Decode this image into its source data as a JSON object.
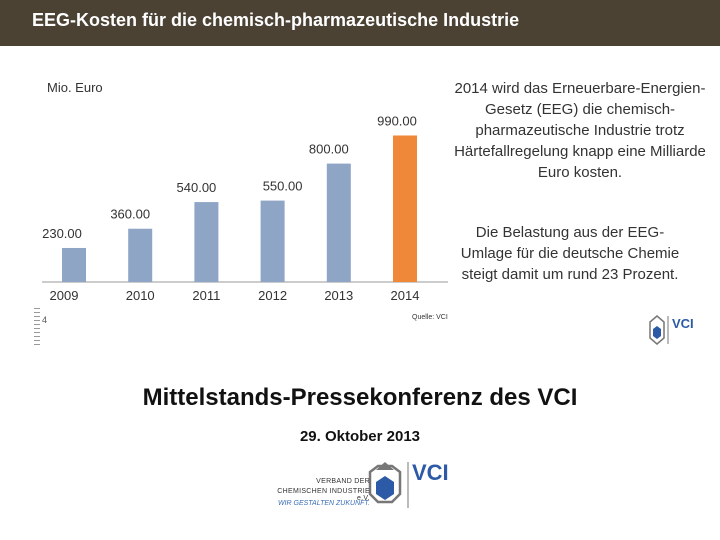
{
  "header": {
    "title": "EEG-Kosten für die chemisch-pharmazeutische Industrie"
  },
  "chart_data": {
    "type": "bar",
    "unit_label": "Mio. Euro",
    "categories": [
      "2009",
      "2010",
      "2011",
      "2012",
      "2013",
      "2014"
    ],
    "values": [
      230,
      360,
      540,
      550,
      800,
      990
    ],
    "data_labels": [
      "230.00",
      "360.00",
      "540.00",
      "550.00",
      "800.00",
      "990.00"
    ],
    "highlight_index": 5,
    "colors": {
      "default": "#8ea5c6",
      "highlight": "#f0883a"
    },
    "ylim": [
      0,
      1000
    ],
    "grid": false
  },
  "side_text": {
    "paragraph1": "2014 wird das Erneuerbare-Energien-Gesetz (EEG) die chemisch-pharmazeutische Industrie trotz Härtefallregelung knapp eine Milliarde Euro kosten.",
    "paragraph2": "Die Belastung aus der EEG-Umlage für die deutsche Chemie steigt damit um rund 23 Prozent."
  },
  "source": "Quelle: VCI",
  "page_number": "4",
  "footer": {
    "title": "Mittelstands-Pressekonferenz des VCI",
    "date": "29. Oktober 2013"
  },
  "logo": {
    "name": "VCI",
    "caption_line1": "VERBAND DER",
    "caption_line2": "CHEMISCHEN INDUSTRIE e.V.",
    "tagline": "WIR GESTALTEN ZUKUNFT.",
    "colors": {
      "blue": "#2d5aa6",
      "gray": "#777777"
    }
  }
}
